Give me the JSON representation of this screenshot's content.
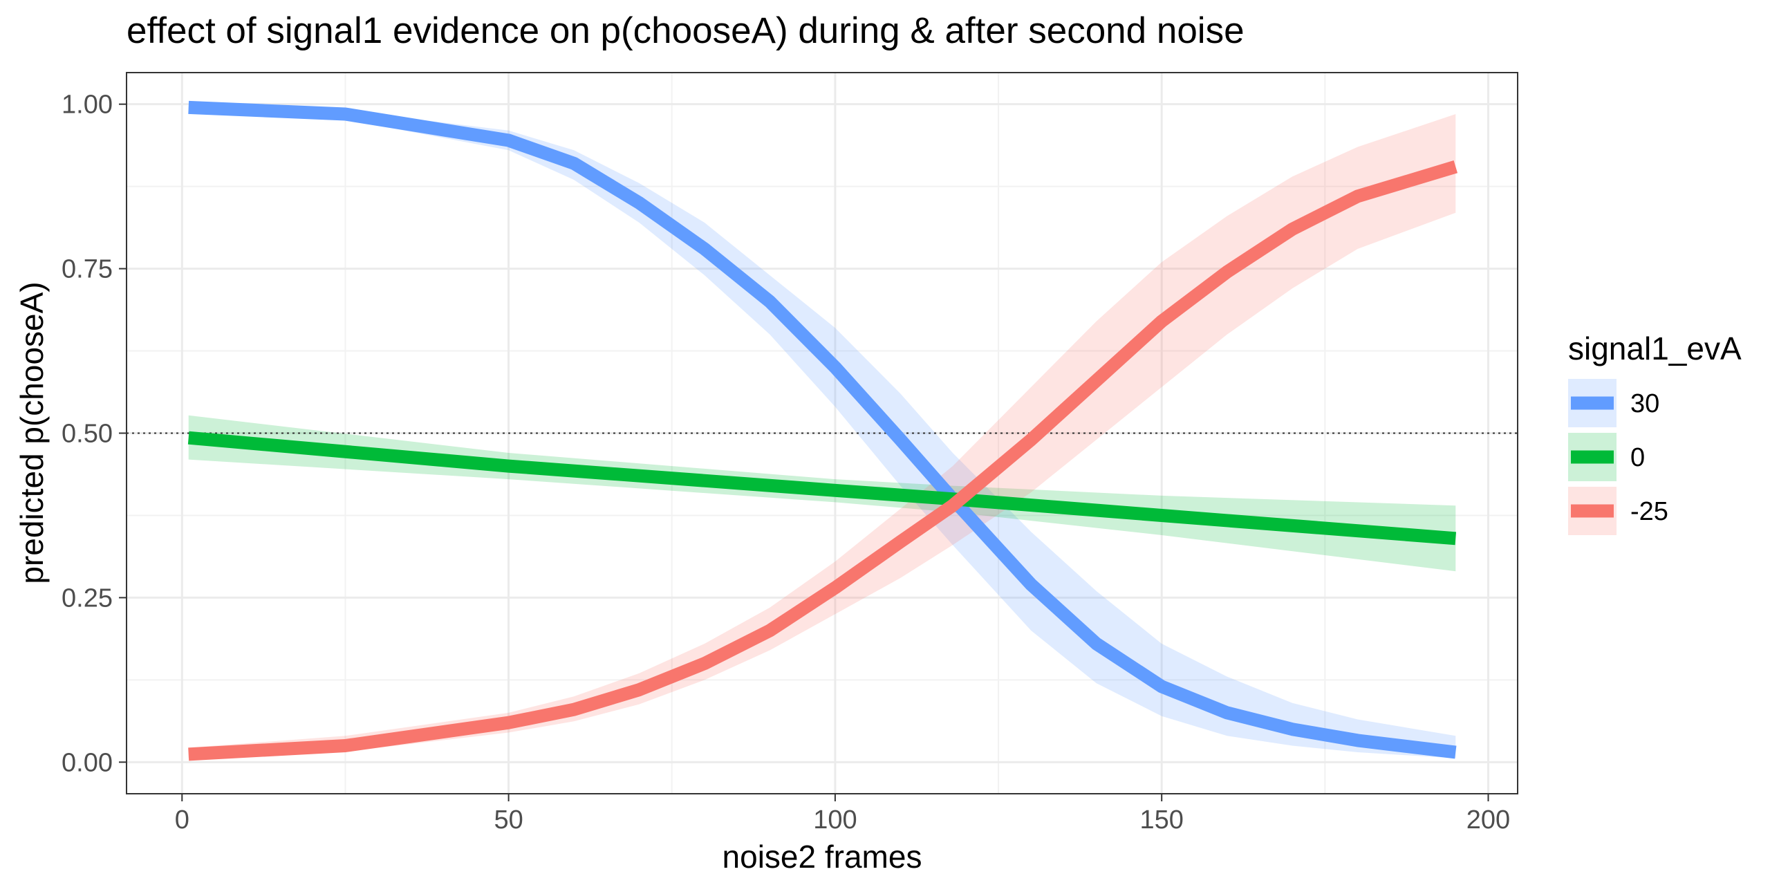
{
  "chart_data": {
    "type": "line",
    "title": "effect of signal1 evidence on p(chooseA) during & after second noise",
    "xlabel": "noise2 frames",
    "ylabel": "predicted p(chooseA)",
    "xlim": [
      -8.5,
      204.5
    ],
    "ylim": [
      -0.048,
      1.048
    ],
    "x_ticks": [
      0,
      50,
      100,
      150,
      200
    ],
    "x_tick_labels": [
      "0",
      "50",
      "100",
      "150",
      "200"
    ],
    "y_ticks": [
      0,
      0.25,
      0.5,
      0.75,
      1
    ],
    "y_tick_labels": [
      "0.00",
      "0.25",
      "0.50",
      "0.75",
      "1.00"
    ],
    "grid": true,
    "reference_line": {
      "y": 0.5,
      "style": "dotted"
    },
    "legend": {
      "title": "signal1_evA",
      "position": "right",
      "entries": [
        "30",
        "0",
        "-25"
      ]
    },
    "series": [
      {
        "name": "30",
        "color": "#619CFF",
        "x": [
          1,
          25,
          50,
          60,
          70,
          80,
          90,
          100,
          110,
          118,
          130,
          140,
          150,
          160,
          170,
          180,
          195
        ],
        "y": [
          0.995,
          0.985,
          0.945,
          0.91,
          0.85,
          0.78,
          0.7,
          0.6,
          0.49,
          0.4,
          0.27,
          0.18,
          0.115,
          0.075,
          0.05,
          0.033,
          0.015
        ],
        "lower": [
          0.993,
          0.977,
          0.93,
          0.885,
          0.82,
          0.74,
          0.65,
          0.54,
          0.42,
          0.33,
          0.2,
          0.12,
          0.07,
          0.04,
          0.025,
          0.015,
          0.006
        ],
        "upper": [
          0.997,
          0.99,
          0.96,
          0.93,
          0.88,
          0.82,
          0.74,
          0.66,
          0.56,
          0.47,
          0.35,
          0.26,
          0.18,
          0.13,
          0.09,
          0.065,
          0.04
        ]
      },
      {
        "name": "0",
        "color": "#00BA38",
        "x": [
          1,
          50,
          100,
          118,
          150,
          195
        ],
        "y": [
          0.493,
          0.45,
          0.413,
          0.4,
          0.375,
          0.34
        ],
        "lower": [
          0.46,
          0.43,
          0.395,
          0.38,
          0.345,
          0.29
        ],
        "upper": [
          0.527,
          0.47,
          0.43,
          0.42,
          0.405,
          0.39
        ]
      },
      {
        "name": "-25",
        "color": "#F8766D",
        "x": [
          1,
          25,
          50,
          60,
          70,
          80,
          90,
          100,
          110,
          118,
          130,
          140,
          150,
          160,
          170,
          180,
          195
        ],
        "y": [
          0.012,
          0.025,
          0.06,
          0.08,
          0.11,
          0.15,
          0.2,
          0.265,
          0.335,
          0.39,
          0.49,
          0.58,
          0.67,
          0.745,
          0.81,
          0.86,
          0.905
        ],
        "lower": [
          0.006,
          0.016,
          0.045,
          0.062,
          0.088,
          0.125,
          0.17,
          0.225,
          0.28,
          0.33,
          0.41,
          0.49,
          0.57,
          0.65,
          0.72,
          0.78,
          0.835
        ],
        "upper": [
          0.022,
          0.04,
          0.075,
          0.1,
          0.135,
          0.18,
          0.235,
          0.305,
          0.385,
          0.45,
          0.57,
          0.67,
          0.76,
          0.83,
          0.89,
          0.935,
          0.985
        ]
      }
    ]
  }
}
